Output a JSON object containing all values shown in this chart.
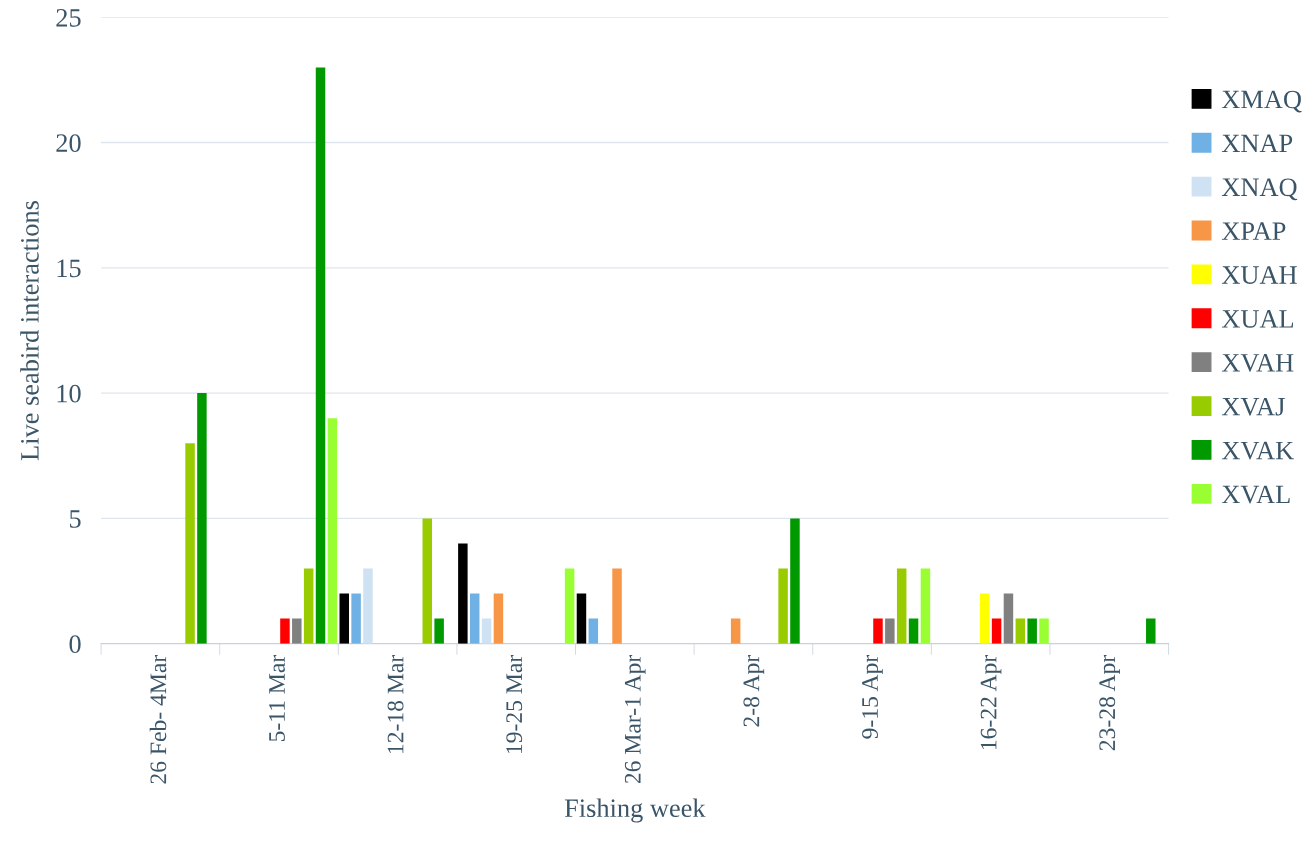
{
  "chart_data": {
    "type": "bar",
    "xlabel": "Fishing week",
    "ylabel": "Live seabird interactions",
    "categories": [
      "26 Feb- 4Mar",
      "5-11 Mar",
      "12-18 Mar",
      "19-25 Mar",
      "26 Mar-1 Apr",
      "2-8 Apr",
      "9-15 Apr",
      "16-22 Apr",
      "23-28 Apr"
    ],
    "series": [
      {
        "name": "XMAQ",
        "color": "#000000",
        "values": [
          null,
          null,
          2,
          4,
          2,
          null,
          null,
          null,
          null
        ]
      },
      {
        "name": "XNAP",
        "color": "#6fb1e4",
        "values": [
          null,
          null,
          2,
          2,
          1,
          null,
          null,
          null,
          null
        ]
      },
      {
        "name": "XNAQ",
        "color": "#cfe2f3",
        "values": [
          null,
          null,
          3,
          1,
          null,
          null,
          null,
          null,
          null
        ]
      },
      {
        "name": "XPAP",
        "color": "#f79646",
        "values": [
          null,
          null,
          null,
          2,
          3,
          1,
          null,
          null,
          null
        ]
      },
      {
        "name": "XUAH",
        "color": "#ffff00",
        "values": [
          null,
          null,
          null,
          null,
          null,
          null,
          null,
          2,
          null
        ]
      },
      {
        "name": "XUAL",
        "color": "#ff0000",
        "values": [
          null,
          1,
          null,
          null,
          null,
          null,
          1,
          1,
          null
        ]
      },
      {
        "name": "XVAH",
        "color": "#808080",
        "values": [
          null,
          1,
          null,
          null,
          null,
          null,
          1,
          2,
          null
        ]
      },
      {
        "name": "XVAJ",
        "color": "#99cc00",
        "values": [
          8,
          3,
          5,
          null,
          null,
          3,
          3,
          1,
          null
        ]
      },
      {
        "name": "XVAK",
        "color": "#009900",
        "values": [
          10,
          23,
          1,
          null,
          null,
          5,
          1,
          1,
          1
        ]
      },
      {
        "name": "XVAL",
        "color": "#99ff33",
        "values": [
          null,
          9,
          null,
          3,
          null,
          null,
          3,
          1,
          null
        ]
      }
    ],
    "ylim": [
      0,
      25
    ],
    "yticks": [
      0,
      5,
      10,
      15,
      20,
      25
    ],
    "grid": "y",
    "legend": "right"
  }
}
